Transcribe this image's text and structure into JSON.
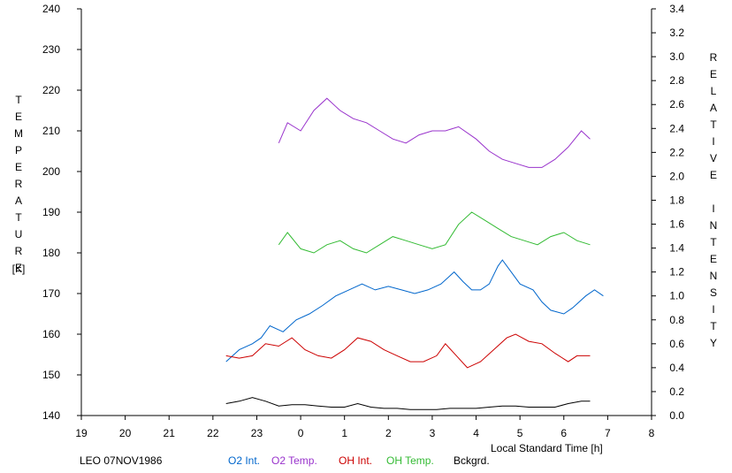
{
  "chart_data": {
    "type": "line",
    "xlabel": "Local Standard Time [h]",
    "ylabel_left": "TEMPERATURE",
    "ylabel_left_unit": "[K]",
    "ylabel_right": "RELATIVE INTENSITY",
    "x_ticks": [
      "19",
      "20",
      "21",
      "22",
      "23",
      "0",
      "1",
      "2",
      "3",
      "4",
      "5",
      "6",
      "7",
      "8"
    ],
    "xlim": [
      19,
      32
    ],
    "y_left_ticks": [
      "140",
      "150",
      "160",
      "170",
      "180",
      "190",
      "200",
      "210",
      "220",
      "230",
      "240"
    ],
    "ylim_left": [
      140,
      240
    ],
    "y_right_ticks": [
      "0.0",
      "0.2",
      "0.4",
      "0.6",
      "0.8",
      "1.0",
      "1.2",
      "1.4",
      "1.6",
      "1.8",
      "2.0",
      "2.2",
      "2.4",
      "2.6",
      "2.8",
      "3.0",
      "3.2",
      "3.4"
    ],
    "ylim_right": [
      0,
      3.4
    ],
    "grid": false,
    "footer_title": "LEO 07NOV1986",
    "series": [
      {
        "name": "O2 Int.",
        "color": "#0066cc",
        "axis": "right",
        "points": [
          [
            22.3,
            0.45
          ],
          [
            22.6,
            0.55
          ],
          [
            22.9,
            0.6
          ],
          [
            23.1,
            0.65
          ],
          [
            23.3,
            0.75
          ],
          [
            23.6,
            0.7
          ],
          [
            23.9,
            0.8
          ],
          [
            24.2,
            0.85
          ],
          [
            24.5,
            0.92
          ],
          [
            24.8,
            1.0
          ],
          [
            25.1,
            1.05
          ],
          [
            25.4,
            1.1
          ],
          [
            25.7,
            1.05
          ],
          [
            26.0,
            1.08
          ],
          [
            26.3,
            1.05
          ],
          [
            26.6,
            1.02
          ],
          [
            26.9,
            1.05
          ],
          [
            27.2,
            1.1
          ],
          [
            27.5,
            1.2
          ],
          [
            27.7,
            1.12
          ],
          [
            27.9,
            1.05
          ],
          [
            28.1,
            1.05
          ],
          [
            28.3,
            1.1
          ],
          [
            28.5,
            1.25
          ],
          [
            28.6,
            1.3
          ],
          [
            28.8,
            1.2
          ],
          [
            29.0,
            1.1
          ],
          [
            29.3,
            1.05
          ],
          [
            29.5,
            0.95
          ],
          [
            29.7,
            0.88
          ],
          [
            30.0,
            0.85
          ],
          [
            30.2,
            0.9
          ],
          [
            30.5,
            1.0
          ],
          [
            30.7,
            1.05
          ],
          [
            30.9,
            1.0
          ]
        ]
      },
      {
        "name": "O2 Temp.",
        "color": "#9933cc",
        "axis": "left",
        "points": [
          [
            23.5,
            207
          ],
          [
            23.7,
            212
          ],
          [
            24.0,
            210
          ],
          [
            24.3,
            215
          ],
          [
            24.6,
            218
          ],
          [
            24.9,
            215
          ],
          [
            25.2,
            213
          ],
          [
            25.5,
            212
          ],
          [
            25.8,
            210
          ],
          [
            26.1,
            208
          ],
          [
            26.4,
            207
          ],
          [
            26.7,
            209
          ],
          [
            27.0,
            210
          ],
          [
            27.3,
            210
          ],
          [
            27.6,
            211
          ],
          [
            28.0,
            208
          ],
          [
            28.3,
            205
          ],
          [
            28.6,
            203
          ],
          [
            28.9,
            202
          ],
          [
            29.2,
            201
          ],
          [
            29.5,
            201
          ],
          [
            29.8,
            203
          ],
          [
            30.1,
            206
          ],
          [
            30.4,
            210
          ],
          [
            30.6,
            208
          ]
        ]
      },
      {
        "name": "OH Int.",
        "color": "#cc0000",
        "axis": "right",
        "points": [
          [
            22.3,
            0.5
          ],
          [
            22.6,
            0.48
          ],
          [
            22.9,
            0.5
          ],
          [
            23.2,
            0.6
          ],
          [
            23.5,
            0.58
          ],
          [
            23.8,
            0.65
          ],
          [
            24.1,
            0.55
          ],
          [
            24.4,
            0.5
          ],
          [
            24.7,
            0.48
          ],
          [
            25.0,
            0.55
          ],
          [
            25.3,
            0.65
          ],
          [
            25.6,
            0.62
          ],
          [
            25.9,
            0.55
          ],
          [
            26.2,
            0.5
          ],
          [
            26.5,
            0.45
          ],
          [
            26.8,
            0.45
          ],
          [
            27.1,
            0.5
          ],
          [
            27.3,
            0.6
          ],
          [
            27.6,
            0.48
          ],
          [
            27.8,
            0.4
          ],
          [
            28.1,
            0.45
          ],
          [
            28.4,
            0.55
          ],
          [
            28.7,
            0.65
          ],
          [
            28.9,
            0.68
          ],
          [
            29.2,
            0.62
          ],
          [
            29.5,
            0.6
          ],
          [
            29.8,
            0.52
          ],
          [
            30.1,
            0.45
          ],
          [
            30.3,
            0.5
          ],
          [
            30.6,
            0.5
          ]
        ]
      },
      {
        "name": "OH Temp.",
        "color": "#33bb33",
        "axis": "left",
        "points": [
          [
            23.5,
            182
          ],
          [
            23.7,
            185
          ],
          [
            24.0,
            181
          ],
          [
            24.3,
            180
          ],
          [
            24.6,
            182
          ],
          [
            24.9,
            183
          ],
          [
            25.2,
            181
          ],
          [
            25.5,
            180
          ],
          [
            25.8,
            182
          ],
          [
            26.1,
            184
          ],
          [
            26.4,
            183
          ],
          [
            26.7,
            182
          ],
          [
            27.0,
            181
          ],
          [
            27.3,
            182
          ],
          [
            27.6,
            187
          ],
          [
            27.9,
            190
          ],
          [
            28.2,
            188
          ],
          [
            28.5,
            186
          ],
          [
            28.8,
            184
          ],
          [
            29.1,
            183
          ],
          [
            29.4,
            182
          ],
          [
            29.7,
            184
          ],
          [
            30.0,
            185
          ],
          [
            30.3,
            183
          ],
          [
            30.6,
            182
          ]
        ]
      },
      {
        "name": "Bckgrd.",
        "color": "#000000",
        "axis": "right",
        "points": [
          [
            22.3,
            0.1
          ],
          [
            22.6,
            0.12
          ],
          [
            22.9,
            0.15
          ],
          [
            23.2,
            0.12
          ],
          [
            23.5,
            0.08
          ],
          [
            23.8,
            0.09
          ],
          [
            24.1,
            0.09
          ],
          [
            24.4,
            0.08
          ],
          [
            24.7,
            0.07
          ],
          [
            25.0,
            0.07
          ],
          [
            25.3,
            0.1
          ],
          [
            25.6,
            0.07
          ],
          [
            25.9,
            0.06
          ],
          [
            26.2,
            0.06
          ],
          [
            26.5,
            0.05
          ],
          [
            26.8,
            0.05
          ],
          [
            27.1,
            0.05
          ],
          [
            27.4,
            0.06
          ],
          [
            27.7,
            0.06
          ],
          [
            28.0,
            0.06
          ],
          [
            28.3,
            0.07
          ],
          [
            28.6,
            0.08
          ],
          [
            28.9,
            0.08
          ],
          [
            29.2,
            0.07
          ],
          [
            29.5,
            0.07
          ],
          [
            29.8,
            0.07
          ],
          [
            30.1,
            0.1
          ],
          [
            30.4,
            0.12
          ],
          [
            30.6,
            0.12
          ]
        ]
      }
    ]
  }
}
